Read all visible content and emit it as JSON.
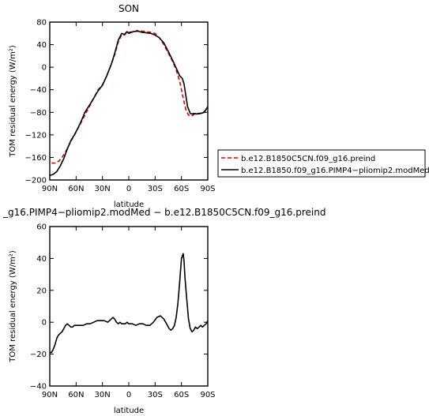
{
  "chart_data": [
    {
      "type": "line",
      "title": "SON",
      "xlabel": "latitude",
      "ylabel": "TOM residual energy (W/m²)",
      "xlim": [
        90,
        -90
      ],
      "ylim": [
        -200,
        80
      ],
      "xticks": [
        90,
        60,
        30,
        0,
        -30,
        -60,
        -90
      ],
      "xtick_labels": [
        "90N",
        "60N",
        "30N",
        "0",
        "30S",
        "60S",
        "90S"
      ],
      "yticks": [
        80,
        40,
        0,
        -40,
        -80,
        -120,
        -160,
        -200
      ],
      "ytick_labels": [
        "80",
        "40",
        "0",
        "−40",
        "−80",
        "−120",
        "−160",
        "−200"
      ],
      "legend": "outside-right",
      "series": [
        {
          "name": "b.e12.B1850C5CN.f09_g16.preind",
          "color": "#dd0000",
          "dash": "dashed",
          "x": [
            88,
            84,
            80,
            76,
            72,
            68,
            64,
            60,
            55,
            50,
            45,
            40,
            35,
            30,
            25,
            20,
            16,
            12,
            8,
            5,
            2,
            0,
            -5,
            -10,
            -15,
            -20,
            -25,
            -30,
            -35,
            -40,
            -45,
            -50,
            -54,
            -58,
            -62,
            -65,
            -68,
            -71,
            -73,
            -76,
            -80,
            -85,
            -90
          ],
          "y": [
            -170,
            -170,
            -167,
            -160,
            -150,
            -138,
            -126,
            -115,
            -100,
            -85,
            -70,
            -55,
            -40,
            -31,
            -15,
            5,
            22,
            45,
            58,
            57,
            62,
            62,
            63,
            65,
            64,
            63,
            62,
            60,
            52,
            40,
            25,
            10,
            -5,
            -25,
            -55,
            -75,
            -85,
            -87,
            -85,
            -82,
            -82,
            -80,
            -72
          ]
        },
        {
          "name": "b.e12.B1850.f09_g16.PIMP4−pliomip2.modMed",
          "color": "#000000",
          "dash": "solid",
          "x": [
            90,
            86,
            82,
            78,
            74,
            70,
            66,
            62,
            58,
            54,
            50,
            45,
            40,
            35,
            30,
            25,
            20,
            16,
            12,
            8,
            5,
            2,
            0,
            -5,
            -10,
            -15,
            -20,
            -25,
            -30,
            -35,
            -40,
            -45,
            -50,
            -55,
            -58,
            -61,
            -63,
            -65,
            -67,
            -70,
            -72,
            -74,
            -78,
            -82,
            -86,
            -90
          ],
          "y": [
            -192,
            -190,
            -185,
            -175,
            -162,
            -145,
            -130,
            -120,
            -108,
            -95,
            -80,
            -68,
            -55,
            -42,
            -32,
            -15,
            5,
            25,
            48,
            60,
            58,
            63,
            60,
            63,
            64,
            62,
            61,
            60,
            57,
            52,
            43,
            28,
            12,
            -5,
            -15,
            -20,
            -30,
            -50,
            -70,
            -82,
            -83,
            -82,
            -83,
            -82,
            -80,
            -70
          ]
        }
      ]
    },
    {
      "type": "line",
      "title": "_g16.PIMP4−pliomip2.modMed − b.e12.B1850C5CN.f09_g16.preind",
      "xlabel": "latitude",
      "ylabel": "TOM residual energy (W/m²)",
      "xlim": [
        90,
        -90
      ],
      "ylim": [
        -40,
        60
      ],
      "xticks": [
        90,
        60,
        30,
        0,
        -30,
        -60,
        -90
      ],
      "xtick_labels": [
        "90N",
        "60N",
        "30N",
        "0",
        "30S",
        "60S",
        "90S"
      ],
      "yticks": [
        60,
        40,
        20,
        0,
        -20,
        -40
      ],
      "ytick_labels": [
        "60",
        "40",
        "20",
        "0",
        "−20",
        "−40"
      ],
      "series": [
        {
          "name": "",
          "color": "#000000",
          "dash": "solid",
          "x": [
            90,
            88,
            86,
            84,
            82,
            80,
            78,
            76,
            74,
            72,
            70,
            68,
            66,
            64,
            62,
            60,
            56,
            52,
            48,
            44,
            40,
            36,
            32,
            28,
            24,
            20,
            18,
            16,
            14,
            12,
            10,
            8,
            6,
            4,
            2,
            0,
            -4,
            -8,
            -12,
            -16,
            -20,
            -24,
            -28,
            -32,
            -36,
            -40,
            -42,
            -44,
            -46,
            -48,
            -50,
            -52,
            -54,
            -56,
            -58,
            -60,
            -62,
            -63,
            -64,
            -66,
            -68,
            -70,
            -72,
            -74,
            -76,
            -78,
            -80,
            -82,
            -84,
            -86,
            -88,
            -90
          ],
          "y": [
            -19,
            -19,
            -17,
            -14,
            -10,
            -8,
            -7,
            -6,
            -4,
            -2,
            -1,
            -2,
            -3,
            -3,
            -2,
            -2,
            -2,
            -2,
            -1,
            -1,
            0,
            1,
            1,
            1,
            0,
            2,
            3,
            2,
            0,
            -1,
            0,
            -1,
            -1,
            -1,
            0,
            -1,
            -1,
            -2,
            -1,
            -1,
            -2,
            -2,
            0,
            3,
            4,
            2,
            0,
            -2,
            -4,
            -5,
            -4,
            -2,
            3,
            12,
            25,
            40,
            43,
            38,
            28,
            15,
            2,
            -4,
            -6,
            -5,
            -3,
            -4,
            -3,
            -2,
            -3,
            -2,
            -1,
            1
          ]
        }
      ]
    }
  ]
}
